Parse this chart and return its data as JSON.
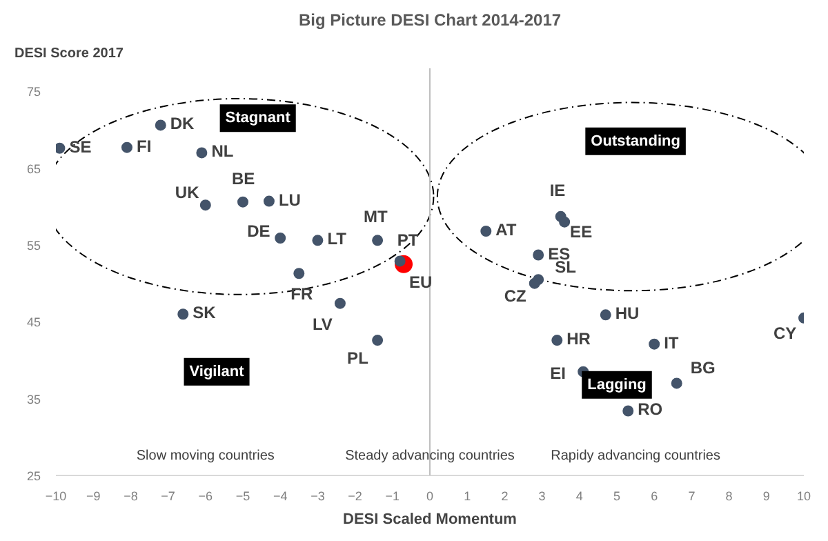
{
  "chart_data": {
    "type": "scatter",
    "title": "Big Picture DESI Chart 2014-2017",
    "xlabel": "DESI Scaled Momentum",
    "ylabel": "DESI Score 2017",
    "xlim": [
      -10,
      10
    ],
    "ylim": [
      25,
      78
    ],
    "xticks": [
      -10,
      -9,
      -8,
      -7,
      -6,
      -5,
      -4,
      -3,
      -2,
      -1,
      0,
      1,
      2,
      3,
      4,
      5,
      6,
      7,
      8,
      9,
      10
    ],
    "yticks": [
      25,
      35,
      45,
      55,
      65,
      75
    ],
    "grid": false,
    "marker": "circle",
    "ref_lines": [
      {
        "axis": "x",
        "value": 0,
        "color": "#bfbfbf"
      }
    ],
    "annotations": [
      "Stagnant",
      "Outstanding",
      "Vigilant",
      "Lagging",
      "Slow moving countries",
      "Steady advancing countries",
      "Rapidy advancing countries"
    ],
    "series": [
      {
        "name": "SE",
        "color": "#44546a",
        "x": [
          -9.9
        ],
        "values": [
          67.6
        ]
      },
      {
        "name": "DK",
        "color": "#44546a",
        "x": [
          -7.2
        ],
        "values": [
          70.6
        ]
      },
      {
        "name": "FI",
        "color": "#44546a",
        "x": [
          -8.1
        ],
        "values": [
          67.7
        ]
      },
      {
        "name": "NL",
        "color": "#44546a",
        "x": [
          -6.1
        ],
        "values": [
          67.0
        ]
      },
      {
        "name": "BE",
        "color": "#44546a",
        "x": [
          -5.0
        ],
        "values": [
          60.6
        ]
      },
      {
        "name": "LU",
        "color": "#44546a",
        "x": [
          -4.3
        ],
        "values": [
          60.7
        ]
      },
      {
        "name": "UK",
        "color": "#44546a",
        "x": [
          -6.0
        ],
        "values": [
          60.2
        ]
      },
      {
        "name": "DE",
        "color": "#44546a",
        "x": [
          -4.0
        ],
        "values": [
          55.9
        ]
      },
      {
        "name": "LT",
        "color": "#44546a",
        "x": [
          -3.0
        ],
        "values": [
          55.6
        ]
      },
      {
        "name": "MT",
        "color": "#44546a",
        "x": [
          -1.4
        ],
        "values": [
          55.6
        ]
      },
      {
        "name": "PT",
        "color": "#44546a",
        "x": [
          -0.8
        ],
        "values": [
          52.9
        ]
      },
      {
        "name": "EU",
        "color": "#ff0000",
        "x": [
          -0.7
        ],
        "values": [
          52.5
        ]
      },
      {
        "name": "FR",
        "color": "#44546a",
        "x": [
          -3.5
        ],
        "values": [
          51.3
        ]
      },
      {
        "name": "LV",
        "color": "#44546a",
        "x": [
          -2.4
        ],
        "values": [
          47.4
        ]
      },
      {
        "name": "SK",
        "color": "#44546a",
        "x": [
          -6.6
        ],
        "values": [
          46.0
        ]
      },
      {
        "name": "PL",
        "color": "#44546a",
        "x": [
          -1.4
        ],
        "values": [
          42.6
        ]
      },
      {
        "name": "AT",
        "color": "#44546a",
        "x": [
          1.5
        ],
        "values": [
          56.8
        ]
      },
      {
        "name": "IE",
        "color": "#44546a",
        "x": [
          3.5
        ],
        "values": [
          58.7
        ]
      },
      {
        "name": "EE",
        "color": "#44546a",
        "x": [
          3.6
        ],
        "values": [
          58.0
        ]
      },
      {
        "name": "ES",
        "color": "#44546a",
        "x": [
          2.9
        ],
        "values": [
          53.7
        ]
      },
      {
        "name": "SL",
        "color": "#44546a",
        "x": [
          2.9
        ],
        "values": [
          50.5
        ]
      },
      {
        "name": "CZ",
        "color": "#44546a",
        "x": [
          2.8
        ],
        "values": [
          50.0
        ]
      },
      {
        "name": "HU",
        "color": "#44546a",
        "x": [
          4.7
        ],
        "values": [
          45.9
        ]
      },
      {
        "name": "HR",
        "color": "#44546a",
        "x": [
          3.4
        ],
        "values": [
          42.6
        ]
      },
      {
        "name": "IT",
        "color": "#44546a",
        "x": [
          6.0
        ],
        "values": [
          42.1
        ]
      },
      {
        "name": "CY",
        "color": "#44546a",
        "x": [
          10.0
        ],
        "values": [
          45.5
        ]
      },
      {
        "name": "EI",
        "color": "#44546a",
        "x": [
          4.1
        ],
        "values": [
          38.5
        ]
      },
      {
        "name": "BG",
        "color": "#44546a",
        "x": [
          6.6
        ],
        "values": [
          37.0
        ]
      },
      {
        "name": "RO",
        "color": "#44546a",
        "x": [
          5.3
        ],
        "values": [
          33.4
        ]
      }
    ]
  }
}
